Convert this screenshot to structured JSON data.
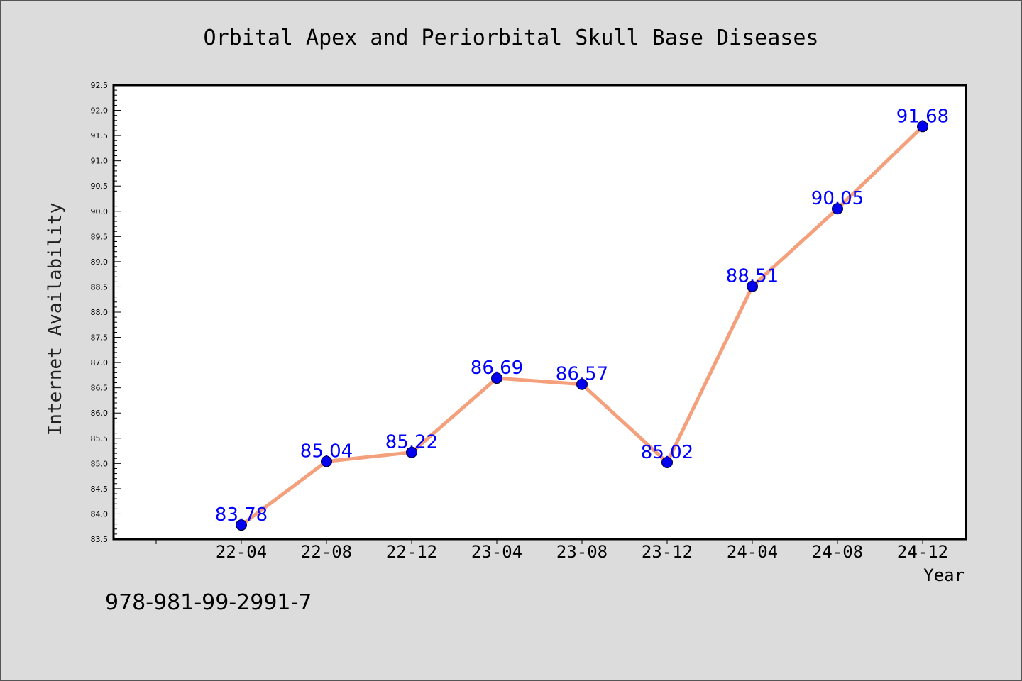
{
  "chart_data": {
    "type": "line",
    "title": "Orbital Apex and Periorbital Skull Base Diseases",
    "xlabel": "Year",
    "ylabel": "Internet Availability",
    "categories": [
      "22-04",
      "22-08",
      "22-12",
      "23-04",
      "23-08",
      "23-12",
      "24-04",
      "24-08",
      "24-12"
    ],
    "series": [
      {
        "values": [
          83.78,
          85.04,
          85.22,
          86.69,
          86.57,
          85.02,
          88.51,
          90.05,
          91.68
        ],
        "labels": [
          "83.78",
          "85.04",
          "85.22",
          "86.69",
          "86.57",
          "85.02",
          "88.51",
          "90.05",
          "91.68"
        ]
      }
    ],
    "ylim": [
      83.5,
      92.5
    ],
    "yticks": [
      "83.5",
      "84.0",
      "84.5",
      "85.0",
      "85.5",
      "86.0",
      "86.5",
      "87.0",
      "87.5",
      "88.0",
      "88.5",
      "89.0",
      "89.5",
      "90.0",
      "90.5",
      "91.0",
      "91.5",
      "92.0",
      "92.5"
    ],
    "grid": false,
    "legend": "none",
    "colors": {
      "line": "#f4a07c",
      "marker": "#0000ee",
      "label": "#0000ff",
      "background": "#dcdcdc",
      "plot_background": "#ffffff"
    }
  },
  "footer": {
    "code": "978-981-99-2991-7"
  }
}
